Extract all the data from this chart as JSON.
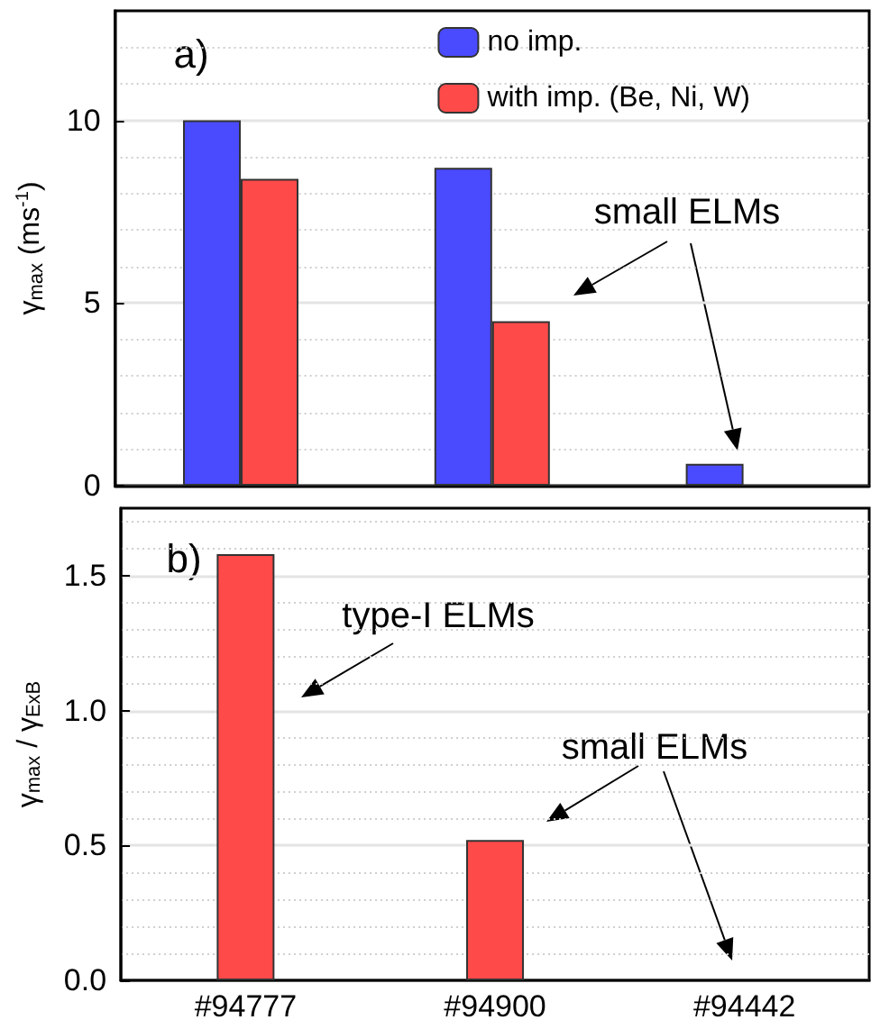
{
  "chart_data": [
    {
      "type": "bar",
      "categories": [
        "#94777",
        "#94900",
        "#94442"
      ],
      "ylabel": "γ$_{max}$ (ms$^{-1}$)",
      "annotations": [
        "a)",
        "small ELMs"
      ],
      "series": [
        {
          "name": "no imp.",
          "color": "#4a4aff",
          "values": [
            10,
            8.7,
            0.6
          ]
        },
        {
          "name": "with imp. (Be, Ni, W)",
          "color": "#ff4a4a",
          "values": [
            8.4,
            4.5,
            null
          ]
        }
      ],
      "ylim": [
        0,
        13
      ],
      "yticks": [
        0,
        5,
        10,
        {
          "value": 1,
          "label": null
        },
        {
          "value": 2,
          "label": null
        },
        {
          "value": 3,
          "label": null
        },
        {
          "value": 4,
          "label": null
        },
        {
          "value": 6,
          "label": null
        },
        {
          "value": 7,
          "label": null
        },
        {
          "value": 8,
          "label": null
        },
        {
          "value": 9,
          "label": null
        },
        {
          "value": 11,
          "label": null
        },
        {
          "value": 12,
          "label": null
        }
      ],
      "grid": "y",
      "legend": "top right",
      "tick_labels": "y"
    },
    {
      "type": "bar",
      "categories": [
        "#94777",
        "#94900",
        "#94442"
      ],
      "ylabel": "γ$_{max}$ / γ$_{ExB}$",
      "annotations": [
        "b)",
        "type-I ELMs",
        "small ELMs"
      ],
      "series": [
        {
          "color": "#ff4a4a",
          "values": [
            1.58,
            0.52,
            null
          ]
        }
      ],
      "ylim": [
        0,
        1.75
      ],
      "yticks": [
        {
          "value": 0,
          "label": "0.0"
        },
        {
          "value": 0.5,
          "label": "0.5"
        },
        {
          "value": 1,
          "label": "1.0"
        },
        {
          "value": 1.5,
          "label": "1.5"
        },
        {
          "value": 0.1,
          "label": null
        },
        {
          "value": 0.2,
          "label": null
        },
        {
          "value": 0.3,
          "label": null
        },
        {
          "value": 0.4,
          "label": null
        },
        {
          "value": 0.6,
          "label": null
        },
        {
          "value": 0.7,
          "label": null
        },
        {
          "value": 0.8,
          "label": null
        },
        {
          "value": 0.9,
          "label": null
        },
        {
          "value": 1.1,
          "label": null
        },
        {
          "value": 1.2,
          "label": null
        },
        {
          "value": 1.3,
          "label": null
        },
        {
          "value": 1.4,
          "label": null
        },
        {
          "value": 1.6,
          "label": null
        },
        {
          "value": 1.7,
          "label": null
        }
      ],
      "grid": "y"
    }
  ]
}
